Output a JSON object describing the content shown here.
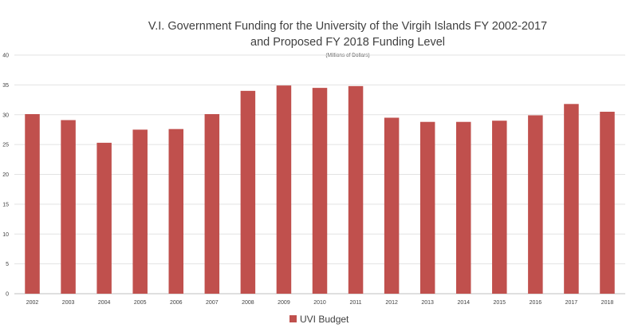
{
  "chart_data": {
    "type": "bar",
    "title_line1": "V.I. Government Funding for the University of the Virgih Islands FY 2002-2017",
    "title_line2": "and Proposed FY 2018 Funding Level",
    "subtitle": "(Millions of Dollars)",
    "xlabel": "",
    "ylabel": "",
    "ylim": [
      0,
      40
    ],
    "yticks": [
      0,
      5,
      10,
      15,
      20,
      25,
      30,
      35,
      40
    ],
    "grid": true,
    "legend_position": "bottom",
    "categories": [
      "2002",
      "2003",
      "2004",
      "2005",
      "2006",
      "2007",
      "2008",
      "2009",
      "2010",
      "2011",
      "2012",
      "2013",
      "2014",
      "2015",
      "2016",
      "2017",
      "2018"
    ],
    "series": [
      {
        "name": "UVI Budget",
        "color": "#c0504d",
        "values": [
          30.1,
          29.1,
          25.3,
          27.5,
          27.6,
          30.1,
          34.0,
          34.9,
          34.5,
          34.8,
          29.5,
          28.8,
          28.8,
          29.0,
          29.9,
          31.8,
          30.5
        ]
      }
    ]
  }
}
